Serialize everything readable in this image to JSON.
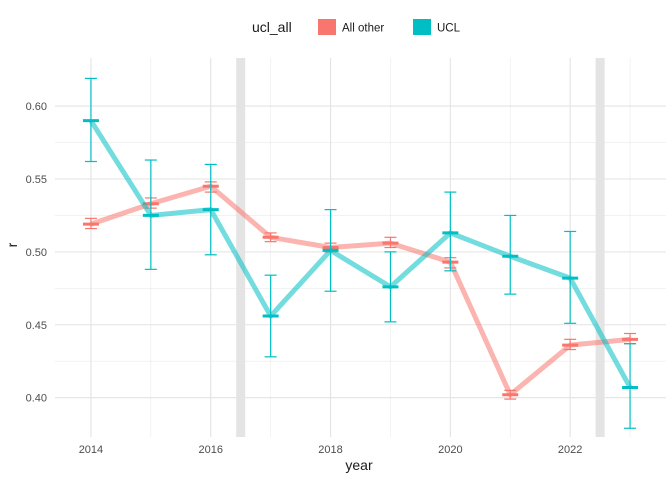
{
  "chart_data": {
    "type": "line",
    "xlabel": "year",
    "ylabel": "r",
    "xlim": [
      2013.4,
      2023.6
    ],
    "ylim": [
      0.373,
      0.633
    ],
    "x_ticks": [
      2014,
      2016,
      2018,
      2020,
      2022
    ],
    "x_tick_labels": [
      "2014",
      "2016",
      "2018",
      "2020",
      "2022"
    ],
    "y_ticks": [
      0.4,
      0.45,
      0.5,
      0.55,
      0.6
    ],
    "y_tick_labels": [
      "0.40",
      "0.45",
      "0.50",
      "0.55",
      "0.60"
    ],
    "grid": true,
    "legend": {
      "title": "ucl_all",
      "placement": "top",
      "labels": [
        "All other",
        "UCL"
      ]
    },
    "vertical_bands": [
      2016.5,
      2022.5
    ],
    "band_color": "#e4e4e4",
    "series": [
      {
        "name": "All other",
        "color": "#F8766D",
        "x": [
          2014,
          2015,
          2016,
          2017,
          2018,
          2019,
          2020,
          2021,
          2022,
          2023
        ],
        "y": [
          0.519,
          0.533,
          0.545,
          0.51,
          0.503,
          0.506,
          0.493,
          0.402,
          0.436,
          0.44
        ],
        "lower": [
          0.516,
          0.53,
          0.541,
          0.507,
          0.5,
          0.503,
          0.489,
          0.399,
          0.433,
          0.437
        ],
        "upper": [
          0.523,
          0.537,
          0.548,
          0.513,
          0.506,
          0.51,
          0.496,
          0.405,
          0.44,
          0.444
        ]
      },
      {
        "name": "UCL",
        "color": "#00BFC4",
        "x": [
          2014,
          2015,
          2016,
          2017,
          2018,
          2019,
          2020,
          2021,
          2022,
          2023
        ],
        "y": [
          0.59,
          0.525,
          0.529,
          0.456,
          0.501,
          0.476,
          0.513,
          0.497,
          0.482,
          0.407
        ],
        "lower": [
          0.562,
          0.488,
          0.498,
          0.428,
          0.473,
          0.452,
          0.487,
          0.471,
          0.451,
          0.379
        ],
        "upper": [
          0.619,
          0.563,
          0.56,
          0.484,
          0.529,
          0.5,
          0.541,
          0.525,
          0.514,
          0.437
        ]
      }
    ]
  }
}
